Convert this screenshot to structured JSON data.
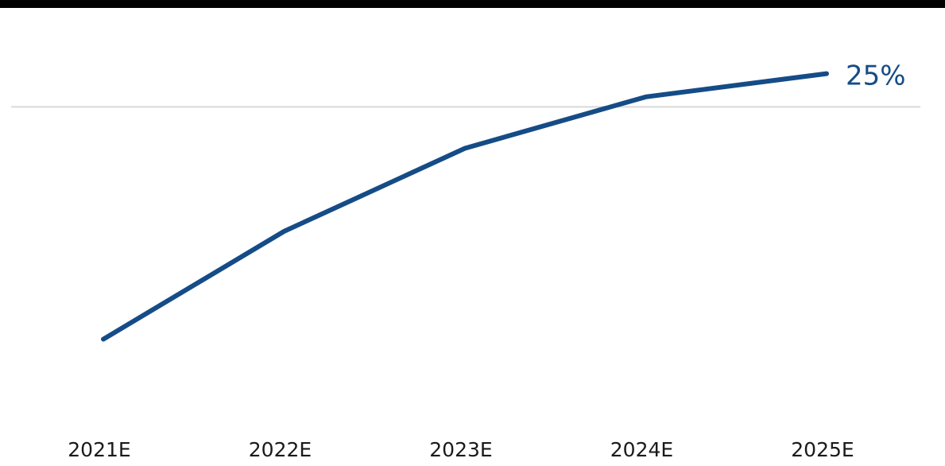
{
  "chart_data": {
    "type": "line",
    "categories": [
      "2021E",
      "2022E",
      "2023E",
      "2024E",
      "2025E"
    ],
    "series": [
      {
        "values": [
          9,
          15.5,
          20.5,
          23.6,
          25
        ]
      }
    ],
    "end_label": "25%",
    "ylim": [
      5,
      28
    ],
    "gridlines": [
      23
    ],
    "grid": true,
    "legend": "none",
    "colors": {
      "line": "#154c87",
      "gridline": "#d9d9d9",
      "top_rule": "#000000"
    }
  }
}
